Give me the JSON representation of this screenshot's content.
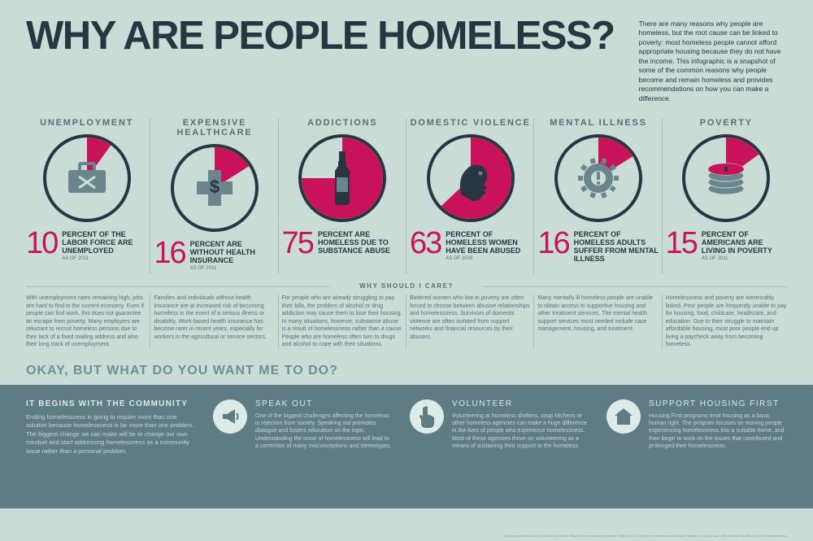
{
  "title": "WHY ARE PEOPLE HOMELESS?",
  "intro": "There are many reasons why people are homeless, but the root cause can be linked to poverty: most homeless people cannot afford appropriate housing because they do not have the income. This infographic is a snapshot of some of the common reasons why people become and remain homeless and provides recommendations on how you can make a difference.",
  "colors": {
    "background": "#c9dcd6",
    "text_dark": "#2a3542",
    "text_muted": "#5a6e78",
    "accent": "#c8135b",
    "circle_border": "#2a3542",
    "icon_tint": "#6a858c",
    "footer_bg": "#5f7c85",
    "footer_icon_bg": "#dcebe7",
    "footer_text": "#c5d6d4"
  },
  "causes": [
    {
      "label": "UNEMPLOYMENT",
      "percent": 10,
      "stat": "10",
      "stat_text": "PERCENT OF THE LABOR FORCE ARE UNEMPLOYED",
      "sub": "AS OF 2011",
      "icon": "briefcase",
      "care": "With unemployment rates remaining high, jobs are hard to find in the current economy. Even if people can find work, this does not guarantee an escape from poverty. Many employers are reluctant to recruit homeless persons due to their lack of a fixed mailing address and also their long track of unemployment."
    },
    {
      "label": "EXPENSIVE HEALTHCARE",
      "percent": 16,
      "stat": "16",
      "stat_text": "PERCENT ARE WITHOUT HEALTH INSURANCE",
      "sub": "AS OF 2011",
      "icon": "medical",
      "care": "Families and individuals without health insurance are at increased risk of becoming homeless in the event of a serious illness or disability. Work-based health insurance has become rarer in recent years, especially for workers in the agricultural or service sectors."
    },
    {
      "label": "ADDICTIONS",
      "percent": 75,
      "stat": "75",
      "stat_text": "PERCENT ARE HOMELESS DUE TO SUBSTANCE ABUSE",
      "sub": "",
      "icon": "bottle",
      "care": "For people who are already struggling to pay their bills, the problem of alcohol or drug addiction may cause them to lose their housing. In many situations, however, substance abuse is a result of homelessness rather than a cause. People who are homeless often turn to drugs and alcohol to cope with their situations."
    },
    {
      "label": "DOMESTIC VIOLENCE",
      "percent": 63,
      "stat": "63",
      "stat_text": "PERCENT OF HOMELESS WOMEN HAVE BEEN ABUSED",
      "sub": "AS OF 2009",
      "icon": "silhouette",
      "care": "Battered women who live in poverty are often forced to choose between abusive relationships and homelessness. Survivors of domestic violence are often isolated from support networks and financial resources by their abusers."
    },
    {
      "label": "MENTAL ILLNESS",
      "percent": 16,
      "stat": "16",
      "stat_text": "PERCENT OF HOMELESS ADULTS SUFFER FROM MENTAL ILLNESS",
      "sub": "",
      "icon": "gear",
      "care": "Many mentally ill homeless people are unable to obtain access to supportive housing and other treatment services. The mental health support services most needed include case management, housing, and treatment."
    },
    {
      "label": "POVERTY",
      "percent": 15,
      "stat": "15",
      "stat_text": "PERCENT OF AMERICANS ARE LIVING IN POVERTY",
      "sub": "AS OF 2011",
      "icon": "coins",
      "care": "Homelessness and poverty are inextricably linked. Poor people are frequently unable to pay for housing, food, childcare, healthcare, and education. Due to their struggle to maintain affordable housing, most poor people end up living a paycheck away from becoming homeless."
    }
  ],
  "care_heading": "WHY SHOULD I CARE?",
  "action_heading": "OKAY, BUT WHAT DO YOU WANT ME TO DO?",
  "footer_lead": {
    "title": "IT BEGINS WITH THE COMMUNITY",
    "body": "Ending homelessness is going to require more than one solution because homelessness is far more than one problem. The biggest change we can make will be to change our own mindset and start addressing homelessness as a community issue rather than a personal problem."
  },
  "actions": [
    {
      "title": "SPEAK OUT",
      "icon": "megaphone",
      "body": "One of the biggest challenges affecting the homeless is rejection from society. Speaking out promotes dialogue and fosters education on the topic. Understanding the issue of homelessness will lead to a correction of many misconceptions and stereotypes."
    },
    {
      "title": "VOLUNTEER",
      "icon": "hand",
      "body": "Volunteering at homeless shelters, soup kitchens or other homeless agencies can make a huge difference in the lives of people who experience homelessness. Most of these agencies thrive on volunteering as a means of sustaining their support to the homeless."
    },
    {
      "title": "SUPPORT HOUSING FIRST",
      "icon": "house",
      "body": "Housing First programs treat housing as a basic human right. The program focuses on moving people experiencing homelessness into a suitable home, and then begin to work on the issues that contributed and prolonged their homelessness."
    }
  ],
  "footer_note": "Data used in this chart compiled from United States Bureau released between 2006 and 2011 by the Homelessness Research Institute, a core group of the National Coalition to End Homelessness."
}
